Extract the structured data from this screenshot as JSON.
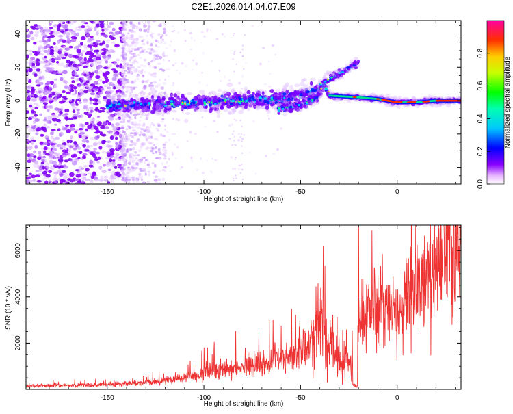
{
  "chart_data": [
    {
      "type": "heatmap",
      "title": "C2E1.2026.014.04.07.E09",
      "xlabel": "Height of straight line (km)",
      "ylabel": "Frequency (Hz)",
      "xlim": [
        -192,
        33
      ],
      "ylim": [
        -50,
        48
      ],
      "xticks": [
        -150,
        -100,
        -50,
        0
      ],
      "yticks": [
        -40,
        -20,
        0,
        20,
        40
      ],
      "ridge_segments": [
        {
          "x": [
            -150,
            -120,
            -100,
            -80,
            -60,
            -48,
            -40
          ],
          "y": [
            -3,
            -2,
            -1,
            0,
            1,
            4,
            6
          ]
        },
        {
          "x": [
            -62,
            -50,
            -42,
            -38,
            -35
          ],
          "y": [
            -5,
            -3,
            1,
            10,
            4
          ]
        },
        {
          "x": [
            -35,
            -20,
            -10,
            0,
            10,
            20,
            33
          ],
          "y": [
            3,
            2,
            1,
            -1,
            -1,
            0,
            0
          ]
        },
        {
          "x": [
            -40,
            -30,
            -20
          ],
          "y": [
            10,
            16,
            23
          ]
        }
      ],
      "colorbar": {
        "label": "Normalized spectral amplitude",
        "range": [
          0,
          1
        ],
        "ticks": [
          "0.0",
          "0.2",
          "0.4",
          "0.6",
          "0.8"
        ],
        "tick_values": [
          0,
          0.2,
          0.4,
          0.6,
          0.8
        ]
      }
    },
    {
      "type": "line",
      "xlabel": "Height of straight line (km)",
      "ylabel": "SNR (10 * v/v)",
      "xlim": [
        -192,
        33
      ],
      "ylim": [
        0,
        7100
      ],
      "xticks": [
        -150,
        -100,
        -50,
        0
      ],
      "yticks": [
        2000,
        4000,
        6000
      ],
      "color": "#ee3333",
      "series_trend": {
        "x": [
          -192,
          -160,
          -130,
          -110,
          -90,
          -70,
          -55,
          -45,
          -40,
          -35,
          -30,
          -25,
          -21,
          -20,
          -10,
          0,
          10,
          20,
          33
        ],
        "y": [
          150,
          180,
          260,
          500,
          900,
          1100,
          1400,
          1800,
          2800,
          1800,
          1500,
          1200,
          1000,
          3100,
          3700,
          3200,
          4500,
          5500,
          6600
        ]
      }
    }
  ]
}
